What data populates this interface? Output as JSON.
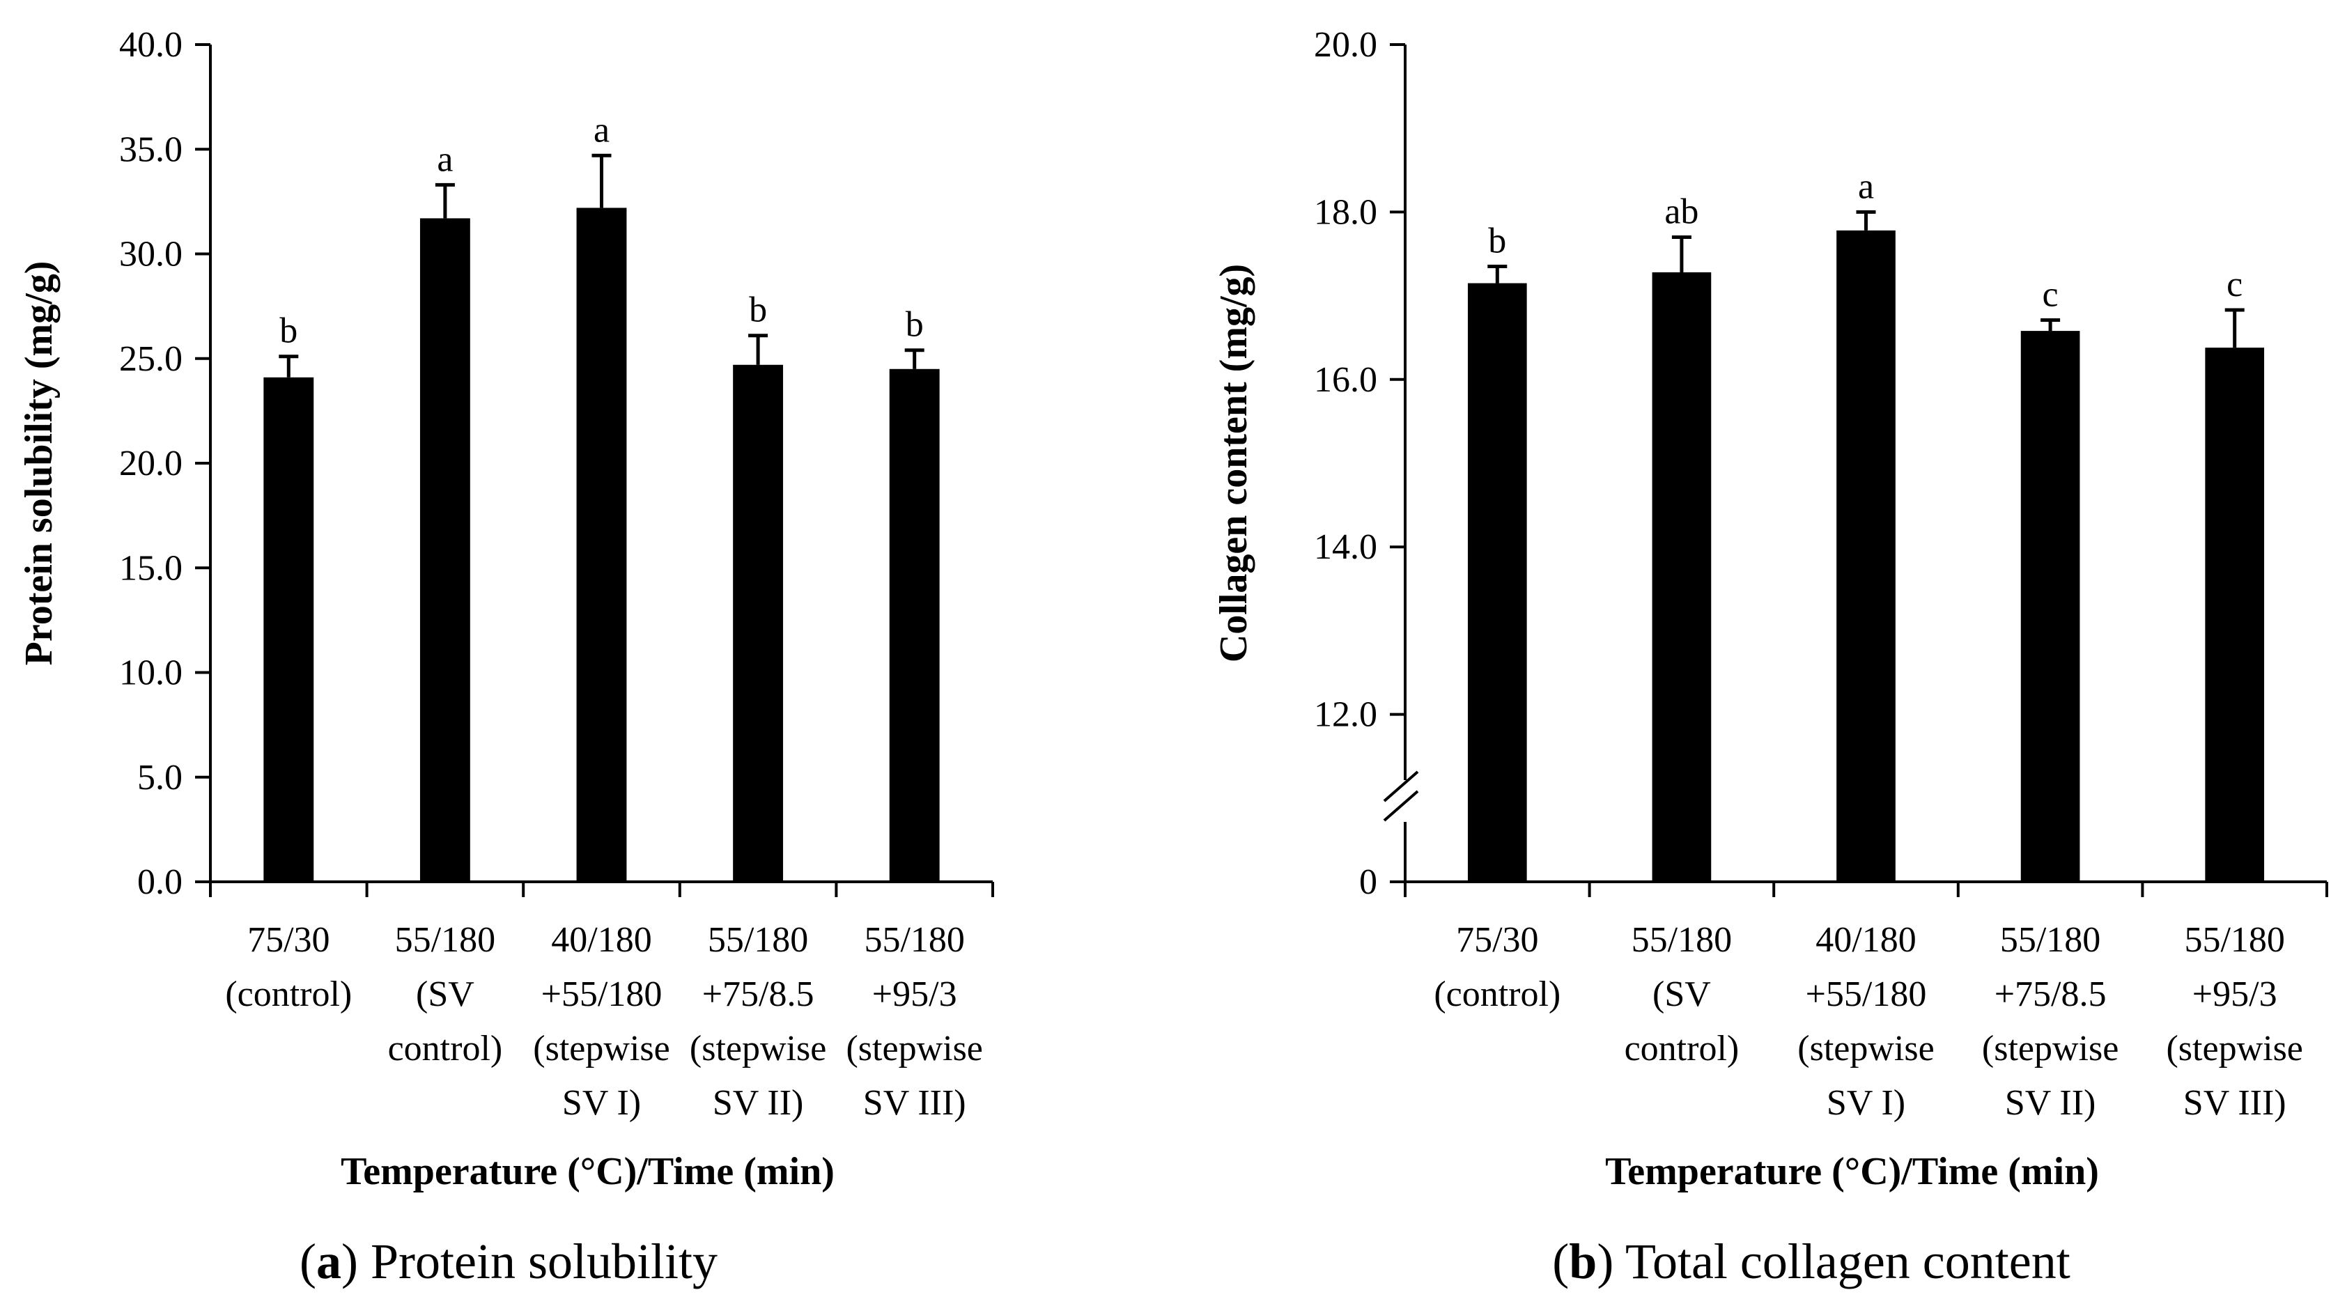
{
  "chart_data": [
    {
      "id": "a",
      "type": "bar",
      "categories": [
        [
          "75/30",
          "(control)"
        ],
        [
          "55/180",
          "(SV",
          "control)"
        ],
        [
          "40/180",
          "+55/180",
          "(stepwise",
          "SV I)"
        ],
        [
          "55/180",
          "+75/8.5",
          "(stepwise",
          "SV II)"
        ],
        [
          "55/180",
          "+95/3",
          "(stepwise",
          "SV III)"
        ]
      ],
      "values": [
        24.1,
        31.7,
        32.2,
        24.7,
        24.5
      ],
      "errors": [
        1.0,
        1.6,
        2.5,
        1.4,
        0.9
      ],
      "labels": [
        "b",
        "a",
        "a",
        "b",
        "b"
      ],
      "ylim": [
        0,
        40
      ],
      "yticks": [
        "0.0",
        "5.0",
        "10.0",
        "15.0",
        "20.0",
        "25.0",
        "30.0",
        "35.0",
        "40.0"
      ],
      "ylabel": "Protein solubility (mg/g)",
      "xlabel": "Temperature (°C)/Time (min)",
      "caption_letter": "a",
      "caption_text": "Protein solubility",
      "color": "#000000"
    },
    {
      "id": "b",
      "type": "bar",
      "categories": [
        [
          "75/30",
          "(control)"
        ],
        [
          "55/180",
          "(SV",
          "control)"
        ],
        [
          "40/180",
          "+55/180",
          "(stepwise",
          "SV I)"
        ],
        [
          "55/180",
          "+75/8.5",
          "(stepwise",
          "SV II)"
        ],
        [
          "55/180",
          "+95/3",
          "(stepwise",
          "SV III)"
        ]
      ],
      "values": [
        17.15,
        17.28,
        17.78,
        16.58,
        16.38
      ],
      "errors": [
        0.2,
        0.42,
        0.22,
        0.13,
        0.45
      ],
      "labels": [
        "b",
        "ab",
        "a",
        "c",
        "c"
      ],
      "axis_break": true,
      "ylim": [
        10,
        20
      ],
      "yticks": [
        "0",
        "12.0",
        "14.0",
        "16.0",
        "18.0",
        "20.0"
      ],
      "ylabel": "Collagen content (mg/g)",
      "xlabel": "Temperature (°C)/Time (min)",
      "caption_letter": "b",
      "caption_text": "Total collagen content",
      "color": "#000000"
    }
  ]
}
